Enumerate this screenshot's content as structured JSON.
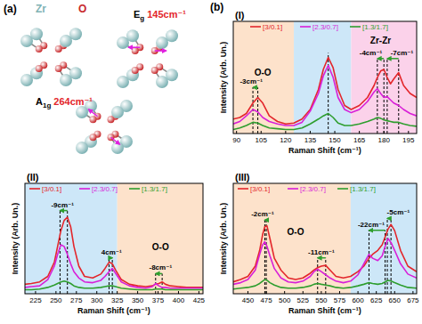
{
  "diagram": {
    "label": "(a)",
    "atoms": [
      {
        "name": "Zr",
        "color": "#7fb3b5"
      },
      {
        "name": "O",
        "color": "#c8282b"
      }
    ],
    "modes": [
      {
        "name": "E",
        "sub": "g",
        "freq": "145cm⁻¹"
      },
      {
        "name": "A",
        "sub": "1g",
        "freq": "264cm⁻¹"
      }
    ]
  },
  "figure_label": "(b)",
  "chart_data": [
    {
      "type": "line",
      "label": "(I)",
      "x_label": "Raman Shift (cm⁻¹)",
      "y_label": "Intensity (Arb. Un.)",
      "xlim": [
        88,
        200
      ],
      "ylim": [
        0,
        1.4
      ],
      "xticks": [
        90,
        105,
        120,
        135,
        150,
        165,
        180,
        195
      ],
      "tick_labels": "x",
      "legend": "top",
      "x": [
        88,
        92,
        96,
        100,
        103,
        106,
        110,
        115,
        120,
        125,
        130,
        135,
        140,
        143,
        146,
        149,
        152,
        156,
        160,
        165,
        170,
        174,
        176,
        178,
        180,
        182,
        184,
        186,
        189,
        192,
        196,
        200
      ],
      "series": [
        {
          "name": "[3/0.1]",
          "color": "#e3262b",
          "values": [
            0.18,
            0.2,
            0.25,
            0.38,
            0.45,
            0.38,
            0.22,
            0.15,
            0.12,
            0.13,
            0.18,
            0.3,
            0.55,
            0.8,
            0.95,
            0.82,
            0.55,
            0.35,
            0.3,
            0.35,
            0.45,
            0.6,
            0.7,
            0.78,
            0.8,
            0.7,
            0.62,
            0.68,
            0.76,
            0.6,
            0.5,
            0.45
          ]
        },
        {
          "name": "[2.3/0.7]",
          "color": "#d81fd8",
          "values": [
            0.12,
            0.15,
            0.22,
            0.3,
            0.27,
            0.2,
            0.15,
            0.12,
            0.1,
            0.1,
            0.14,
            0.28,
            0.5,
            0.72,
            0.85,
            0.7,
            0.45,
            0.3,
            0.26,
            0.3,
            0.4,
            0.52,
            0.56,
            0.5,
            0.45,
            0.46,
            0.42,
            0.38,
            0.35,
            0.3,
            0.25,
            0.22
          ]
        },
        {
          "name": "[1.3/1.7]",
          "color": "#2e9e2e",
          "values": [
            0.05,
            0.07,
            0.1,
            0.14,
            0.13,
            0.1,
            0.07,
            0.06,
            0.05,
            0.05,
            0.07,
            0.12,
            0.18,
            0.22,
            0.25,
            0.2,
            0.13,
            0.1,
            0.1,
            0.12,
            0.15,
            0.18,
            0.2,
            0.19,
            0.17,
            0.16,
            0.15,
            0.14,
            0.14,
            0.12,
            0.1,
            0.09
          ]
        }
      ],
      "regions": [
        {
          "from": 88,
          "to": 125,
          "color": "#fde2cb",
          "label": "O-O",
          "label_x": 106,
          "label_y": 0.72
        },
        {
          "from": 125,
          "to": 160,
          "color": "#cde7f8",
          "label": null
        },
        {
          "from": 160,
          "to": 200,
          "color": "#fbd2ea",
          "label": "Zr-Zr",
          "label_x": 178,
          "label_y": 1.12
        }
      ],
      "annotations": [
        {
          "label": "-3cm⁻¹",
          "x": 99,
          "y": 0.62,
          "from": 103,
          "to": 100
        },
        {
          "label": null,
          "x": 146,
          "y": 1.05,
          "from": 146,
          "to": 146
        },
        {
          "label": "-4cm⁻¹",
          "x": 172,
          "y": 0.98,
          "from": 180,
          "to": 176
        },
        {
          "label": "-7cm⁻¹",
          "x": 191,
          "y": 0.98,
          "from": 189,
          "to": 182
        }
      ]
    },
    {
      "type": "line",
      "label": "(II)",
      "x_label": "Raman Shift (cm⁻¹)",
      "y_label": "Intensity (Arb. Un.)",
      "xlim": [
        212,
        430
      ],
      "ylim": [
        0,
        1.4
      ],
      "xticks": [
        225,
        250,
        275,
        300,
        325,
        350,
        375,
        400,
        425
      ],
      "tick_labels": "x",
      "legend": "top-left",
      "x": [
        212,
        220,
        230,
        240,
        248,
        252,
        256,
        260,
        264,
        268,
        272,
        278,
        285,
        295,
        305,
        310,
        315,
        319,
        323,
        330,
        340,
        350,
        360,
        368,
        372,
        376,
        380,
        384,
        390,
        400,
        410,
        420,
        430
      ],
      "series": [
        {
          "name": "[3/0.1]",
          "color": "#e3262b",
          "values": [
            0.12,
            0.13,
            0.15,
            0.22,
            0.4,
            0.6,
            0.8,
            0.93,
            0.97,
            0.85,
            0.6,
            0.35,
            0.22,
            0.2,
            0.25,
            0.32,
            0.4,
            0.38,
            0.3,
            0.18,
            0.12,
            0.1,
            0.09,
            0.1,
            0.12,
            0.13,
            0.15,
            0.12,
            0.1,
            0.09,
            0.08,
            0.08,
            0.08
          ]
        },
        {
          "name": "[2.3/0.7]",
          "color": "#d81fd8",
          "values": [
            0.08,
            0.09,
            0.1,
            0.18,
            0.35,
            0.5,
            0.62,
            0.6,
            0.5,
            0.38,
            0.28,
            0.2,
            0.15,
            0.14,
            0.17,
            0.22,
            0.28,
            0.32,
            0.26,
            0.15,
            0.1,
            0.08,
            0.07,
            0.09,
            0.13,
            0.1,
            0.08,
            0.08,
            0.07,
            0.07,
            0.07,
            0.07,
            0.07
          ]
        },
        {
          "name": "[1.3/1.7]",
          "color": "#2e9e2e",
          "values": [
            0.05,
            0.05,
            0.06,
            0.08,
            0.11,
            0.13,
            0.15,
            0.16,
            0.15,
            0.13,
            0.1,
            0.08,
            0.07,
            0.07,
            0.08,
            0.09,
            0.1,
            0.1,
            0.09,
            0.07,
            0.06,
            0.05,
            0.05,
            0.05,
            0.06,
            0.06,
            0.06,
            0.05,
            0.05,
            0.05,
            0.05,
            0.05,
            0.05
          ]
        }
      ],
      "regions": [
        {
          "from": 212,
          "to": 325,
          "color": "#cde7f8",
          "label": null
        },
        {
          "from": 325,
          "to": 430,
          "color": "#fde2cb",
          "label": "O-O",
          "label_x": 378,
          "label_y": 0.55
        }
      ],
      "annotations": [
        {
          "label": "-9cm⁻¹",
          "x": 258,
          "y": 1.1,
          "from": 264,
          "to": 255
        },
        {
          "label": "4cm⁻¹",
          "x": 318,
          "y": 0.5,
          "from": 315,
          "to": 319
        },
        {
          "label": "-8cm⁻¹",
          "x": 378,
          "y": 0.3,
          "from": 380,
          "to": 372
        }
      ]
    },
    {
      "type": "line",
      "label": "(III)",
      "x_label": "Raman Shift (cm⁻¹)",
      "y_label": "Intensity (Arb. Un.)",
      "xlim": [
        430,
        680
      ],
      "ylim": [
        0,
        1.4
      ],
      "xticks": [
        450,
        475,
        500,
        525,
        550,
        575,
        600,
        625,
        650,
        675
      ],
      "tick_labels": "x",
      "legend": "top-left",
      "x": [
        430,
        440,
        450,
        460,
        466,
        470,
        473,
        476,
        480,
        486,
        495,
        505,
        515,
        525,
        535,
        540,
        545,
        550,
        556,
        562,
        570,
        580,
        590,
        600,
        608,
        615,
        620,
        627,
        633,
        637,
        641,
        645,
        650,
        658,
        668,
        680
      ],
      "series": [
        {
          "name": "[3/0.1]",
          "color": "#e3262b",
          "values": [
            0.15,
            0.18,
            0.22,
            0.35,
            0.55,
            0.75,
            0.85,
            0.86,
            0.7,
            0.45,
            0.3,
            0.2,
            0.18,
            0.2,
            0.26,
            0.3,
            0.33,
            0.35,
            0.36,
            0.3,
            0.22,
            0.2,
            0.22,
            0.28,
            0.35,
            0.45,
            0.5,
            0.55,
            0.62,
            0.72,
            0.82,
            0.88,
            0.8,
            0.55,
            0.35,
            0.28
          ]
        },
        {
          "name": "[2.3/0.7]",
          "color": "#d81fd8",
          "values": [
            0.12,
            0.14,
            0.18,
            0.3,
            0.5,
            0.62,
            0.66,
            0.6,
            0.48,
            0.32,
            0.2,
            0.15,
            0.14,
            0.16,
            0.22,
            0.28,
            0.31,
            0.28,
            0.24,
            0.2,
            0.16,
            0.14,
            0.16,
            0.24,
            0.38,
            0.5,
            0.45,
            0.42,
            0.48,
            0.6,
            0.7,
            0.65,
            0.55,
            0.38,
            0.25,
            0.2
          ]
        },
        {
          "name": "[1.3/1.7]",
          "color": "#2e9e2e",
          "values": [
            0.06,
            0.07,
            0.08,
            0.1,
            0.13,
            0.16,
            0.18,
            0.17,
            0.14,
            0.11,
            0.08,
            0.07,
            0.07,
            0.08,
            0.1,
            0.12,
            0.13,
            0.12,
            0.11,
            0.1,
            0.08,
            0.07,
            0.08,
            0.1,
            0.12,
            0.14,
            0.13,
            0.12,
            0.13,
            0.15,
            0.17,
            0.16,
            0.14,
            0.11,
            0.08,
            0.07
          ]
        }
      ],
      "regions": [
        {
          "from": 430,
          "to": 590,
          "color": "#fde2cb",
          "label": "O-O",
          "label_x": 515,
          "label_y": 0.75
        },
        {
          "from": 590,
          "to": 680,
          "color": "#cde7f8",
          "label": null
        }
      ],
      "annotations": [
        {
          "label": "-2cm⁻¹",
          "x": 470,
          "y": 0.98,
          "from": 475,
          "to": 473
        },
        {
          "label": "-11cm⁻¹",
          "x": 550,
          "y": 0.5,
          "from": 556,
          "to": 545
        },
        {
          "label": "-22cm⁻¹",
          "x": 618,
          "y": 0.85,
          "from": 637,
          "to": 615
        },
        {
          "label": "-5cm⁻¹",
          "x": 655,
          "y": 1.0,
          "from": 645,
          "to": 640
        }
      ]
    }
  ]
}
